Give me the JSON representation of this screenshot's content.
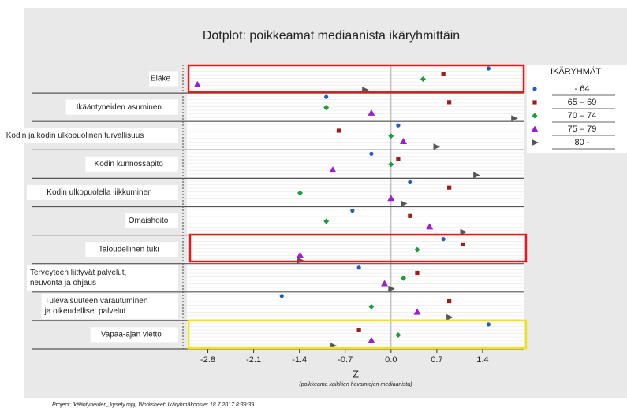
{
  "chart_data": {
    "type": "dotplot",
    "title": "Dotplot: poikkeamat mediaanista ikäryhmittäin",
    "x_label": "Z",
    "x_sublabel": "(poikkeama kaikkien havaintojen mediaanista)",
    "footer": "Project: Ikääntyneiden_kysely.mpj; Worksheet: Ikäryhmäkooste; 18.7.2017 8:39:39",
    "legend_title": "IKÄRYHMÄT",
    "categories": [
      [
        "Eläke"
      ],
      [
        "Ikääntyneiden asuminen"
      ],
      [
        "Kodin ja kodin ulkopuolinen turvallisuus"
      ],
      [
        "Kodin kunnossapito"
      ],
      [
        "Kodin ulkopuolella liikkuminen"
      ],
      [
        "Omaishoito"
      ],
      [
        "Taloudellinen tuki"
      ],
      [
        "Terveyteen liittyvät palvelut,",
        "neuvonta ja ohjaus"
      ],
      [
        "Tulevaisuuteen varautuminen",
        "ja oikeudelliset palvelut"
      ],
      [
        "Vapaa-ajan vietto"
      ]
    ],
    "series": [
      {
        "name": "-  64",
        "color": "#1f5fbf",
        "marker": "circle",
        "values": [
          1.49,
          -0.99,
          0.11,
          -0.3,
          0.29,
          -0.59,
          0.8,
          -0.49,
          -1.67,
          1.49
        ]
      },
      {
        "name": "65 – 69",
        "color": "#a01c1c",
        "marker": "square",
        "values": [
          0.8,
          0.89,
          -0.8,
          0.11,
          0.89,
          0.29,
          1.1,
          0.4,
          0.89,
          -0.49
        ]
      },
      {
        "name": "70 – 74",
        "color": "#1e9b3a",
        "marker": "diamond",
        "values": [
          0.49,
          -0.99,
          0.0,
          0.0,
          -1.39,
          -0.99,
          0.4,
          0.19,
          -0.3,
          0.11
        ]
      },
      {
        "name": "75 – 79",
        "color": "#9b1fd0",
        "marker": "triangle",
        "values": [
          -2.96,
          -0.3,
          0.19,
          -0.89,
          0.0,
          0.59,
          -1.39,
          -0.1,
          0.4,
          -0.3
        ]
      },
      {
        "name": "80 -",
        "color": "#555555",
        "marker": "arrow",
        "values": [
          -0.4,
          1.88,
          0.69,
          1.3,
          0.19,
          1.1,
          -1.39,
          0.0,
          0.89,
          -0.89
        ]
      }
    ],
    "xlim": [
      -3.12,
      2.04
    ],
    "xticks": [
      -2.8,
      -2.1,
      -1.4,
      -0.7,
      {
        "value": 0,
        "label": "0.0"
      },
      0.7,
      1.4
    ]
  }
}
